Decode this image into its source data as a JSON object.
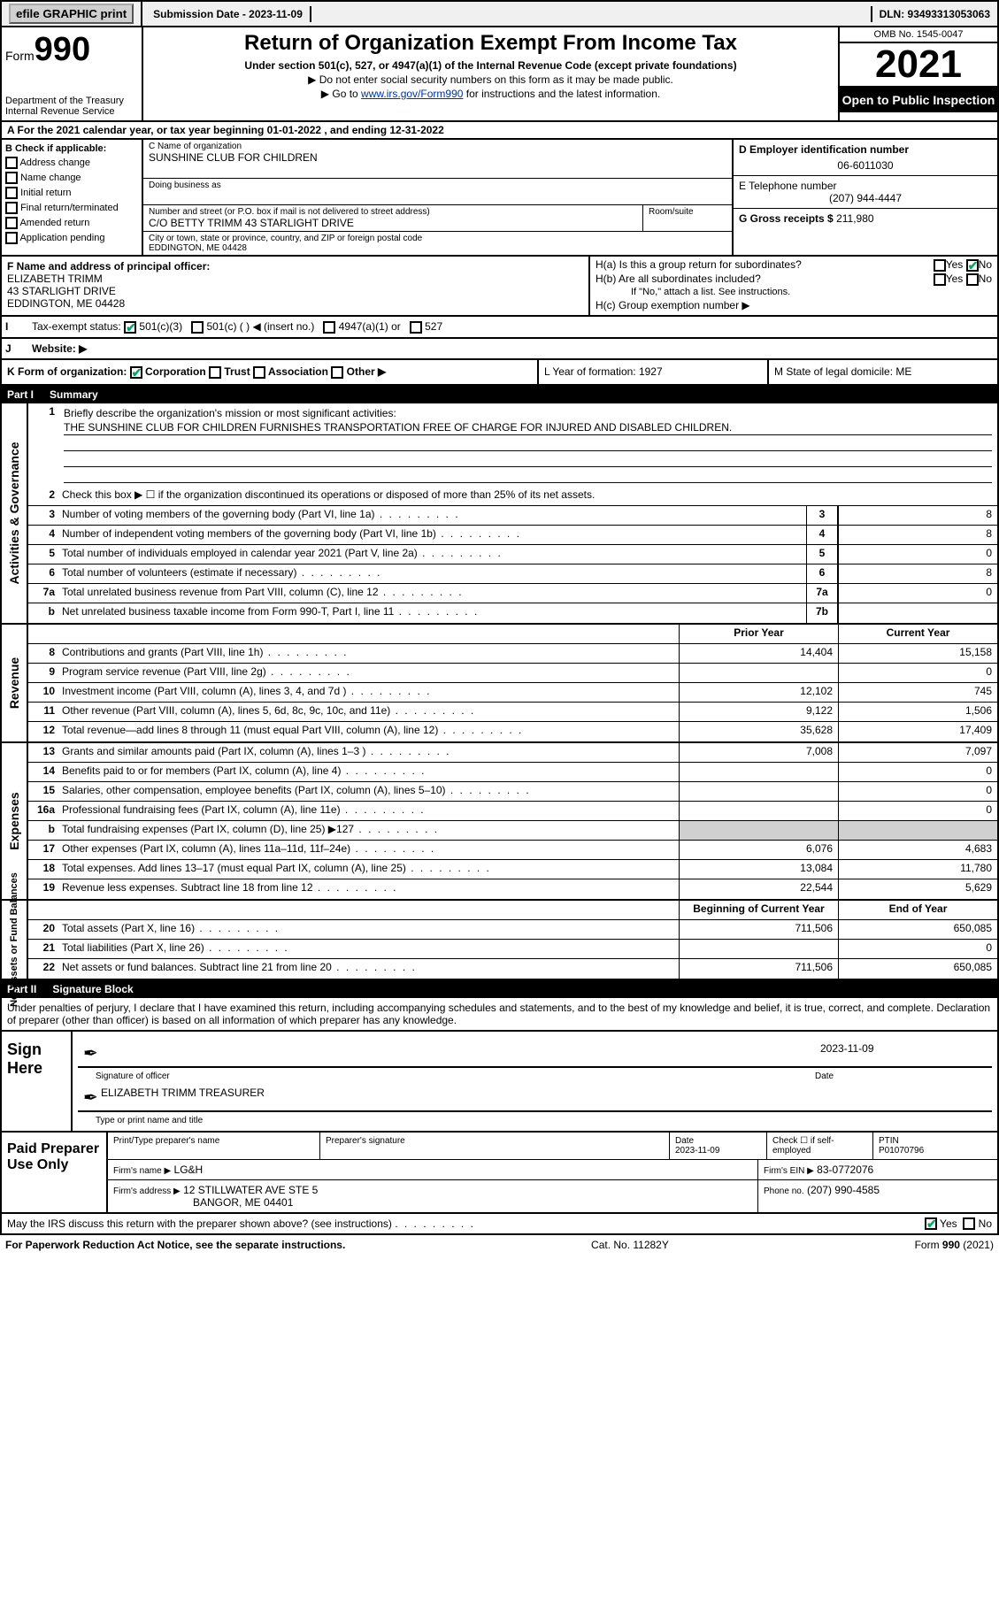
{
  "topbar": {
    "efile": "efile GRAPHIC print",
    "submission_label": "Submission Date - 2023-11-09",
    "dln": "DLN: 93493313053063"
  },
  "header": {
    "form_word": "Form",
    "form_number": "990",
    "title": "Return of Organization Exempt From Income Tax",
    "subtitle": "Under section 501(c), 527, or 4947(a)(1) of the Internal Revenue Code (except private foundations)",
    "note1": "▶ Do not enter social security numbers on this form as it may be made public.",
    "note2_prefix": "▶ Go to ",
    "note2_link": "www.irs.gov/Form990",
    "note2_suffix": " for instructions and the latest information.",
    "dept": "Department of the Treasury\nInternal Revenue Service",
    "omb": "OMB No. 1545-0047",
    "year": "2021",
    "open_public": "Open to Public Inspection"
  },
  "row_a": "A For the 2021 calendar year, or tax year beginning 01-01-2022   , and ending 12-31-2022",
  "col_b": {
    "header": "B Check if applicable:",
    "items": [
      "Address change",
      "Name change",
      "Initial return",
      "Final return/terminated",
      "Amended return",
      "Application pending"
    ]
  },
  "block_c": {
    "name_label": "C Name of organization",
    "name": "SUNSHINE CLUB FOR CHILDREN",
    "dba_label": "Doing business as",
    "addr_label": "Number and street (or P.O. box if mail is not delivered to street address)",
    "room_label": "Room/suite",
    "addr": "C/O BETTY TRIMM 43 STARLIGHT DRIVE",
    "city_label": "City or town, state or province, country, and ZIP or foreign postal code",
    "city": "EDDINGTON, ME  04428"
  },
  "block_d": {
    "label": "D Employer identification number",
    "value": "06-6011030"
  },
  "block_e": {
    "label": "E Telephone number",
    "value": "(207) 944-4447"
  },
  "block_g": {
    "label": "G Gross receipts $",
    "value": "211,980"
  },
  "block_f": {
    "label": "F  Name and address of principal officer:",
    "name": "ELIZABETH TRIMM",
    "addr1": "43 STARLIGHT DRIVE",
    "addr2": "EDDINGTON, ME  04428"
  },
  "block_h": {
    "ha": "H(a)  Is this a group return for subordinates?",
    "hb": "H(b)  Are all subordinates included?",
    "hb_note": "If \"No,\" attach a list. See instructions.",
    "hc": "H(c)  Group exemption number ▶",
    "yes": "Yes",
    "no": "No"
  },
  "row_i": {
    "label": "I",
    "title": "Tax-exempt status:",
    "opts": [
      "501(c)(3)",
      "501(c) (  ) ◀ (insert no.)",
      "4947(a)(1) or",
      "527"
    ]
  },
  "row_j": {
    "label": "J",
    "title": "Website: ▶"
  },
  "row_k": {
    "left": "K Form of organization:",
    "opts": [
      "Corporation",
      "Trust",
      "Association",
      "Other ▶"
    ],
    "mid": "L Year of formation: 1927",
    "right": "M State of legal domicile: ME"
  },
  "part1": {
    "label": "Part I",
    "title": "Summary",
    "q1": "Briefly describe the organization's mission or most significant activities:",
    "mission": "THE SUNSHINE CLUB FOR CHILDREN FURNISHES TRANSPORTATION FREE OF CHARGE FOR INJURED AND DISABLED CHILDREN.",
    "q2": "Check this box ▶ ☐   if the organization discontinued its operations or disposed of more than 25% of its net assets.",
    "lines_gov": [
      {
        "n": "3",
        "d": "Number of voting members of the governing body (Part VI, line 1a)",
        "box": "3",
        "v": "8"
      },
      {
        "n": "4",
        "d": "Number of independent voting members of the governing body (Part VI, line 1b)",
        "box": "4",
        "v": "8"
      },
      {
        "n": "5",
        "d": "Total number of individuals employed in calendar year 2021 (Part V, line 2a)",
        "box": "5",
        "v": "0"
      },
      {
        "n": "6",
        "d": "Total number of volunteers (estimate if necessary)",
        "box": "6",
        "v": "8"
      },
      {
        "n": "7a",
        "d": "Total unrelated business revenue from Part VIII, column (C), line 12",
        "box": "7a",
        "v": "0"
      },
      {
        "n": "b",
        "d": "Net unrelated business taxable income from Form 990-T, Part I, line 11",
        "box": "7b",
        "v": ""
      }
    ],
    "col_headers": {
      "prior": "Prior Year",
      "current": "Current Year"
    },
    "revenue": [
      {
        "n": "8",
        "d": "Contributions and grants (Part VIII, line 1h)",
        "p": "14,404",
        "c": "15,158"
      },
      {
        "n": "9",
        "d": "Program service revenue (Part VIII, line 2g)",
        "p": "",
        "c": "0"
      },
      {
        "n": "10",
        "d": "Investment income (Part VIII, column (A), lines 3, 4, and 7d )",
        "p": "12,102",
        "c": "745"
      },
      {
        "n": "11",
        "d": "Other revenue (Part VIII, column (A), lines 5, 6d, 8c, 9c, 10c, and 11e)",
        "p": "9,122",
        "c": "1,506"
      },
      {
        "n": "12",
        "d": "Total revenue—add lines 8 through 11 (must equal Part VIII, column (A), line 12)",
        "p": "35,628",
        "c": "17,409"
      }
    ],
    "expenses": [
      {
        "n": "13",
        "d": "Grants and similar amounts paid (Part IX, column (A), lines 1–3 )",
        "p": "7,008",
        "c": "7,097"
      },
      {
        "n": "14",
        "d": "Benefits paid to or for members (Part IX, column (A), line 4)",
        "p": "",
        "c": "0"
      },
      {
        "n": "15",
        "d": "Salaries, other compensation, employee benefits (Part IX, column (A), lines 5–10)",
        "p": "",
        "c": "0"
      },
      {
        "n": "16a",
        "d": "Professional fundraising fees (Part IX, column (A), line 11e)",
        "p": "",
        "c": "0"
      },
      {
        "n": "b",
        "d": "Total fundraising expenses (Part IX, column (D), line 25) ▶127",
        "p": "shaded",
        "c": "shaded"
      },
      {
        "n": "17",
        "d": "Other expenses (Part IX, column (A), lines 11a–11d, 11f–24e)",
        "p": "6,076",
        "c": "4,683"
      },
      {
        "n": "18",
        "d": "Total expenses. Add lines 13–17 (must equal Part IX, column (A), line 25)",
        "p": "13,084",
        "c": "11,780"
      },
      {
        "n": "19",
        "d": "Revenue less expenses. Subtract line 18 from line 12",
        "p": "22,544",
        "c": "5,629"
      }
    ],
    "balance_headers": {
      "begin": "Beginning of Current Year",
      "end": "End of Year"
    },
    "balances": [
      {
        "n": "20",
        "d": "Total assets (Part X, line 16)",
        "p": "711,506",
        "c": "650,085"
      },
      {
        "n": "21",
        "d": "Total liabilities (Part X, line 26)",
        "p": "",
        "c": "0"
      },
      {
        "n": "22",
        "d": "Net assets or fund balances. Subtract line 21 from line 20",
        "p": "711,506",
        "c": "650,085"
      }
    ],
    "sides": {
      "gov": "Activities & Governance",
      "rev": "Revenue",
      "exp": "Expenses",
      "bal": "Net Assets or\nFund Balances"
    }
  },
  "part2": {
    "label": "Part II",
    "title": "Signature Block",
    "declaration": "Under penalties of perjury, I declare that I have examined this return, including accompanying schedules and statements, and to the best of my knowledge and belief, it is true, correct, and complete. Declaration of preparer (other than officer) is based on all information of which preparer has any knowledge."
  },
  "sign": {
    "label": "Sign Here",
    "sig_label": "Signature of officer",
    "date": "2023-11-09",
    "date_label": "Date",
    "name": "ELIZABETH TRIMM  TREASURER",
    "name_label": "Type or print name and title"
  },
  "prep": {
    "label": "Paid Preparer Use Only",
    "r1": {
      "c1": "Print/Type preparer's name",
      "c2": "Preparer's signature",
      "c3": "Date",
      "c3v": "2023-11-09",
      "c4": "Check ☐ if self-employed",
      "c5": "PTIN",
      "c5v": "P01070796"
    },
    "r2": {
      "c1": "Firm's name    ▶",
      "c1v": "LG&H",
      "c2": "Firm's EIN ▶",
      "c2v": "83-0772076"
    },
    "r3": {
      "c1": "Firm's address ▶",
      "c1v": "12 STILLWATER AVE STE 5",
      "c1v2": "BANGOR, ME  04401",
      "c2": "Phone no.",
      "c2v": "(207) 990-4585"
    }
  },
  "discuss": "May the IRS discuss this return with the preparer shown above? (see instructions)",
  "footer": {
    "left": "For Paperwork Reduction Act Notice, see the separate instructions.",
    "mid": "Cat. No. 11282Y",
    "right": "Form 990 (2021)"
  }
}
